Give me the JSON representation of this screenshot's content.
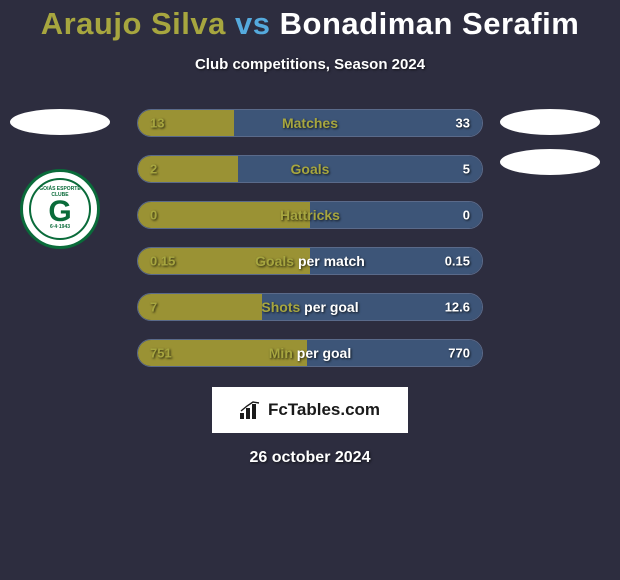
{
  "title": {
    "player1": "Araujo Silva",
    "vs": "vs",
    "player2": "Bonadiman Serafim"
  },
  "subtitle": "Club competitions, Season 2024",
  "colors": {
    "left_accent": "#a7a63f",
    "left_bar": "#9a9234",
    "right_bar": "#3d5578",
    "background": "#2d2d3f",
    "text_white": "#ffffff",
    "title_right": "#55aadd"
  },
  "club_logo": {
    "top_text": "GOIÁS ESPORTE",
    "mid_text": "CLUBE",
    "big_letter": "G",
    "bottom_text": "6·4·1943"
  },
  "stats": [
    {
      "label_left": "Matches",
      "label_right": "",
      "left_val": "13",
      "right_val": "33",
      "left_pct": 28,
      "right_pct": 72
    },
    {
      "label_left": "Goals",
      "label_right": "",
      "left_val": "2",
      "right_val": "5",
      "left_pct": 29,
      "right_pct": 71
    },
    {
      "label_left": "Hattricks",
      "label_right": "",
      "left_val": "0",
      "right_val": "0",
      "left_pct": 50,
      "right_pct": 50
    },
    {
      "label_left": "Goals",
      "label_right": "per match",
      "left_val": "0.15",
      "right_val": "0.15",
      "left_pct": 50,
      "right_pct": 50
    },
    {
      "label_left": "Shots",
      "label_right": "per goal",
      "left_val": "7",
      "right_val": "12.6",
      "left_pct": 36,
      "right_pct": 64
    },
    {
      "label_left": "Min",
      "label_right": "per goal",
      "left_val": "751",
      "right_val": "770",
      "left_pct": 49,
      "right_pct": 51
    }
  ],
  "branding": "FcTables.com",
  "date": "26 october 2024"
}
